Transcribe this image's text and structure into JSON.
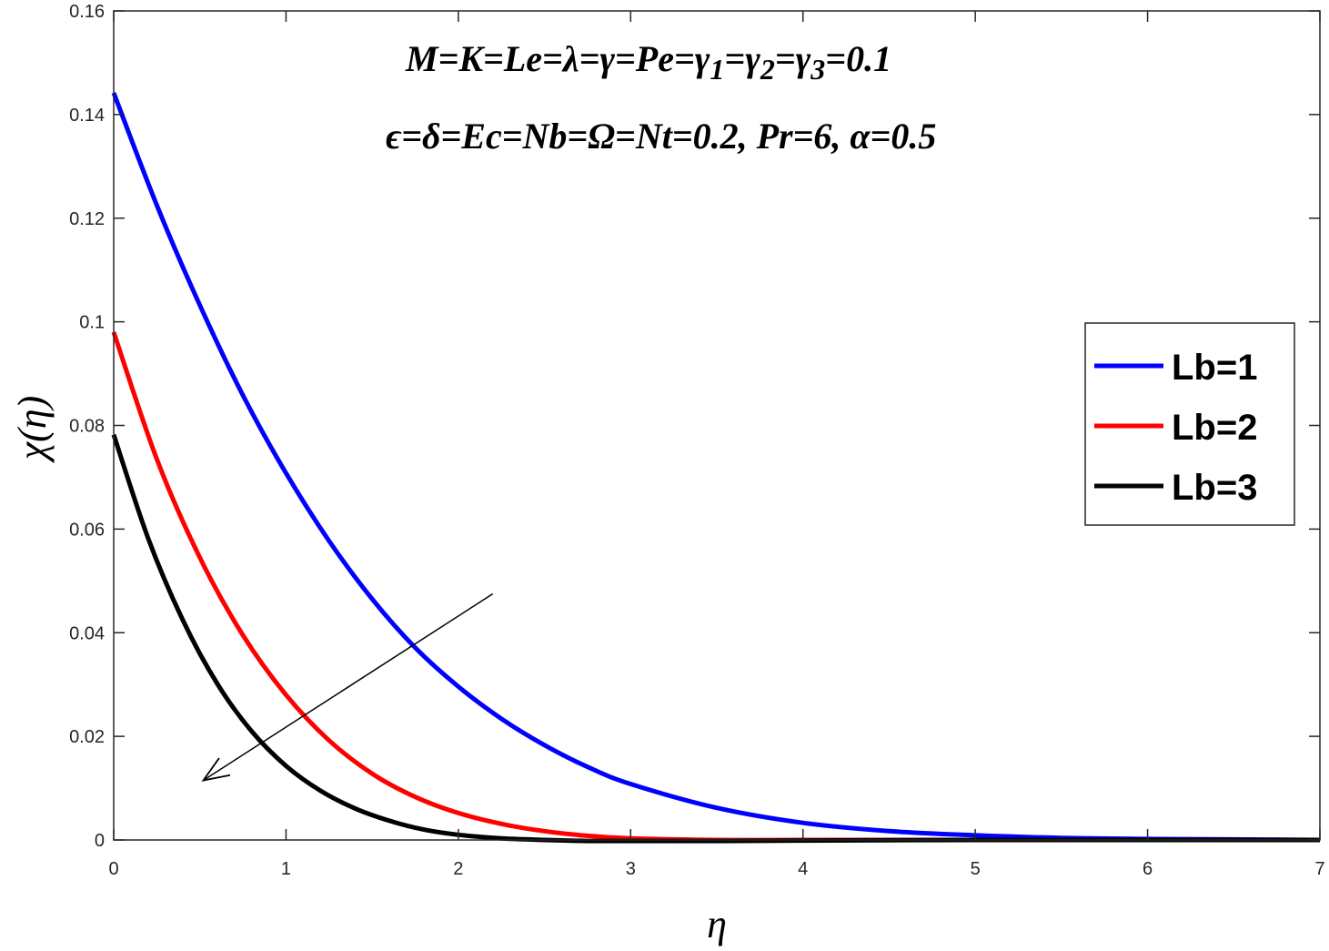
{
  "chart_data": {
    "type": "line",
    "xlabel": "η",
    "ylabel": "χ(η)",
    "xlim": [
      0,
      7
    ],
    "ylim": [
      0,
      0.16
    ],
    "x_ticks": [
      "0",
      "1",
      "2",
      "3",
      "4",
      "5",
      "6",
      "7"
    ],
    "y_ticks": [
      "0",
      "0.02",
      "0.04",
      "0.06",
      "0.08",
      "0.1",
      "0.12",
      "0.14",
      "0.16"
    ],
    "annotations": [
      "M=K=Le=λ=γ=Pe=γ1=γ2=γ3=0.1",
      "ϵ=δ=Ec=Nb=Ω=Nt=0.2, Pr=6, α=0.5"
    ],
    "arrow": {
      "from": [
        2.2,
        0.0475
      ],
      "to": [
        0.52,
        0.0115
      ]
    },
    "legend": {
      "position": "right-middle"
    },
    "grid": false,
    "series": [
      {
        "name": "Lb=1",
        "color": "#0000ff",
        "x": [
          0,
          0.25,
          0.5,
          0.75,
          1.0,
          1.25,
          1.5,
          1.75,
          2.0,
          2.25,
          2.5,
          2.75,
          3.0,
          3.5,
          4.0,
          4.5,
          5.0,
          5.5,
          6.0,
          6.5,
          7.0
        ],
        "y": [
          0.1442,
          0.1225,
          0.1032,
          0.0858,
          0.0708,
          0.0577,
          0.0465,
          0.0371,
          0.0296,
          0.0234,
          0.0183,
          0.0141,
          0.0108,
          0.0062,
          0.0033,
          0.0017,
          0.0009,
          0.0004,
          0.0002,
          0.0001,
          0.0
        ]
      },
      {
        "name": "Lb=2",
        "color": "#ff0000",
        "x": [
          0,
          0.25,
          0.5,
          0.75,
          1.0,
          1.25,
          1.5,
          1.75,
          2.0,
          2.25,
          2.5,
          2.75,
          3.0,
          3.5,
          4.0,
          5.0,
          6.0,
          7.0
        ],
        "y": [
          0.098,
          0.0735,
          0.0545,
          0.0395,
          0.028,
          0.0192,
          0.0128,
          0.0083,
          0.0052,
          0.0031,
          0.0017,
          0.0008,
          0.0003,
          0.0,
          0.0,
          0.0,
          0.0,
          0.0
        ]
      },
      {
        "name": "Lb=3",
        "color": "#000000",
        "x": [
          0,
          0.2,
          0.4,
          0.6,
          0.8,
          1.0,
          1.2,
          1.4,
          1.6,
          1.8,
          2.0,
          2.25,
          2.5,
          2.75,
          3.0,
          3.5,
          4.0,
          5.0,
          6.0,
          7.0
        ],
        "y": [
          0.0782,
          0.0582,
          0.0425,
          0.0302,
          0.021,
          0.0143,
          0.0095,
          0.0061,
          0.0037,
          0.002,
          0.001,
          0.0003,
          0.0,
          -0.0002,
          -0.0002,
          -0.0002,
          -0.0001,
          0.0,
          0.0,
          0.0
        ]
      }
    ]
  }
}
